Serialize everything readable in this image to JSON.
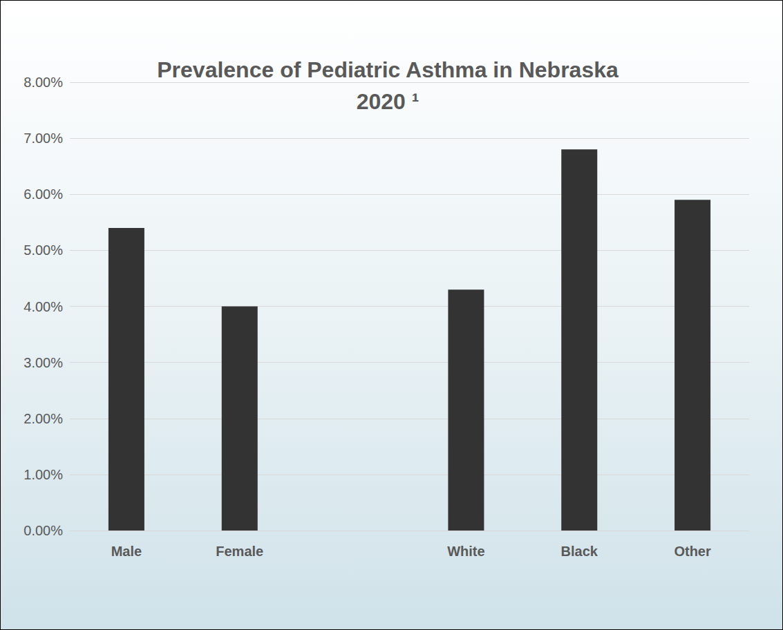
{
  "chart_data": {
    "type": "bar",
    "title": "Prevalence of Pediatric Asthma in Nebraska\n2020 ¹",
    "categories": [
      "Male",
      "Female",
      null,
      "White",
      "Black",
      "Other"
    ],
    "values": [
      5.4,
      4.0,
      null,
      4.3,
      6.8,
      5.9
    ],
    "color": "#333333",
    "ylim": [
      0,
      8
    ],
    "yticks": [
      {
        "value": 0,
        "label": "0.00%"
      },
      {
        "value": 1,
        "label": "1.00%"
      },
      {
        "value": 2,
        "label": "2.00%"
      },
      {
        "value": 3,
        "label": "3.00%"
      },
      {
        "value": 4,
        "label": "4.00%"
      },
      {
        "value": 5,
        "label": "5.00%"
      },
      {
        "value": 6,
        "label": "6.00%"
      },
      {
        "value": 7,
        "label": "7.00%"
      },
      {
        "value": 8,
        "label": "8.00%"
      }
    ],
    "grid": true
  }
}
